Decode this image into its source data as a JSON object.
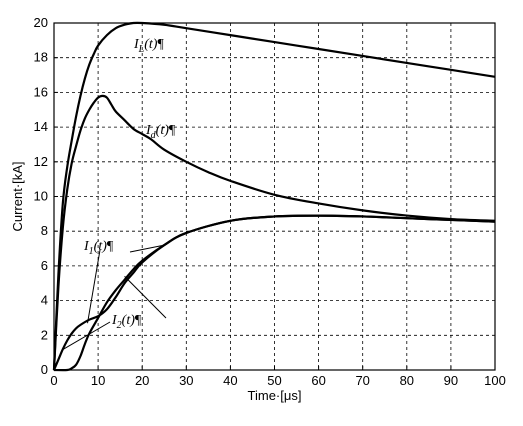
{
  "chart_data": {
    "type": "line",
    "xlabel": "Time·[μs]",
    "ylabel": "Current·[kA]",
    "xlim": [
      0,
      100
    ],
    "ylim": [
      0,
      20
    ],
    "x_ticks": [
      "0",
      "10",
      "20",
      "30",
      "40",
      "50",
      "60",
      "70",
      "80",
      "90",
      "100"
    ],
    "y_ticks": [
      "0",
      "2",
      "4",
      "6",
      "8",
      "10",
      "12",
      "14",
      "16",
      "18",
      "20"
    ],
    "grid": true,
    "series": [
      {
        "name": "I_L(t)",
        "label_main": "I",
        "label_sub": "L",
        "label_rest": "(t)",
        "label_mark": "¶",
        "x": [
          0,
          1,
          2,
          3,
          4,
          5,
          6,
          7,
          8,
          9,
          10,
          12,
          14,
          16,
          18,
          20,
          25,
          30,
          40,
          50,
          60,
          70,
          80,
          90,
          100
        ],
        "y": [
          0,
          5.5,
          9.6,
          11.7,
          13.2,
          14.6,
          15.8,
          16.8,
          17.6,
          18.2,
          18.7,
          19.3,
          19.7,
          19.9,
          20.0,
          20.0,
          19.9,
          19.7,
          19.3,
          18.9,
          18.5,
          18.1,
          17.7,
          17.3,
          16.9
        ]
      },
      {
        "name": "I_d(t)",
        "label_main": "I",
        "label_sub": "d",
        "label_rest": "(t)",
        "label_mark": "¶",
        "x": [
          0,
          1,
          2,
          3,
          4,
          5,
          6,
          7,
          8,
          9,
          10,
          11,
          12,
          13,
          14,
          16,
          18,
          20,
          22,
          25,
          30,
          35,
          40,
          50,
          60,
          70,
          80,
          90,
          100
        ],
        "y": [
          0,
          4.8,
          8.2,
          10.4,
          11.9,
          12.9,
          13.8,
          14.5,
          15.0,
          15.4,
          15.7,
          15.8,
          15.7,
          15.3,
          14.9,
          14.4,
          13.9,
          13.6,
          13.3,
          12.7,
          12.0,
          11.4,
          10.9,
          10.1,
          9.6,
          9.2,
          8.9,
          8.7,
          8.6
        ]
      },
      {
        "name": "I_1(t)",
        "label_main": "I",
        "label_sub": "1",
        "label_rest": "(t)",
        "label_mark": "¶",
        "x": [
          0,
          1,
          2,
          3,
          4,
          5,
          6,
          8,
          10,
          12,
          14,
          16,
          18,
          20,
          25,
          30,
          40,
          50,
          60,
          70,
          80,
          90,
          100
        ],
        "y": [
          0,
          0.6,
          1.2,
          1.7,
          2.1,
          2.4,
          2.6,
          2.9,
          3.1,
          3.5,
          4.2,
          5.0,
          5.6,
          6.2,
          7.2,
          7.9,
          8.6,
          8.85,
          8.9,
          8.85,
          8.75,
          8.65,
          8.55
        ]
      },
      {
        "name": "I_2(t)",
        "label_main": "I",
        "label_sub": "2",
        "label_rest": "(t)",
        "label_mark": "¶",
        "x": [
          0,
          3,
          4,
          5,
          6,
          7,
          8,
          10,
          12,
          14,
          16,
          18,
          20,
          25,
          30,
          40,
          50,
          60,
          70,
          80,
          90,
          100
        ],
        "y": [
          0,
          0,
          0.1,
          0.3,
          0.8,
          1.5,
          2.1,
          3.0,
          3.9,
          4.6,
          5.2,
          5.8,
          6.3,
          7.2,
          7.9,
          8.6,
          8.85,
          8.9,
          8.85,
          8.75,
          8.65,
          8.55
        ]
      }
    ]
  }
}
